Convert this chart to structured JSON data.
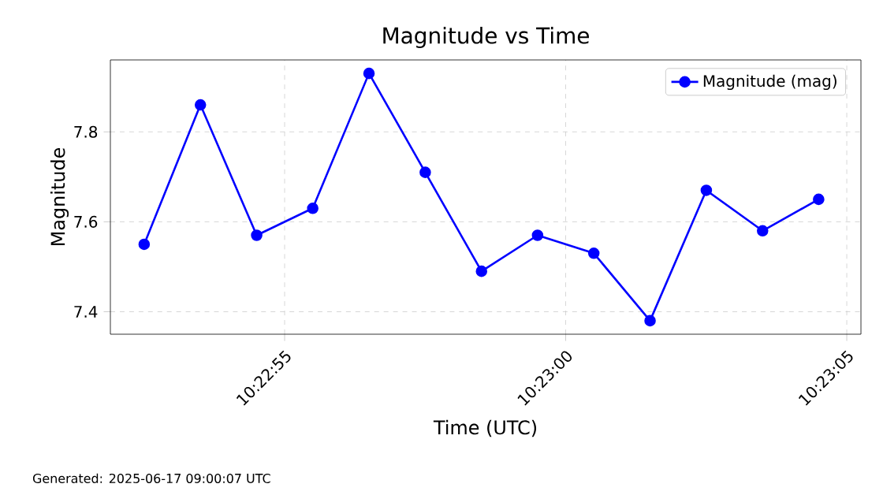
{
  "chart_data": {
    "type": "line",
    "title": "Magnitude vs Time",
    "xlabel": "Time (UTC)",
    "ylabel": "Magnitude",
    "x": [
      10.38125,
      10.381528,
      10.381806,
      10.382083,
      10.382361,
      10.382639,
      10.382917,
      10.383194,
      10.383472,
      10.38375,
      10.384028,
      10.384306,
      10.384583
    ],
    "series": [
      {
        "name": "Magnitude (mag)",
        "color": "#0000ff",
        "values": [
          7.55,
          7.86,
          7.57,
          7.63,
          7.93,
          7.71,
          7.49,
          7.57,
          7.53,
          7.38,
          7.67,
          7.58,
          7.65
        ]
      }
    ],
    "xlim": [
      10.381083,
      10.384792
    ],
    "ylim": [
      7.35,
      7.96
    ],
    "xticks": [
      {
        "value": 10.381944,
        "label": "10:22:55"
      },
      {
        "value": 10.383333,
        "label": "10:23:00"
      },
      {
        "value": 10.384722,
        "label": "10:23:05"
      }
    ],
    "yticks": [
      7.4,
      7.6,
      7.8
    ],
    "grid": true,
    "legend": "top right",
    "marker": "circle",
    "line_style": "solid",
    "annotations": [
      "Generated: 2025-06-17 09:00:07 UTC"
    ]
  }
}
